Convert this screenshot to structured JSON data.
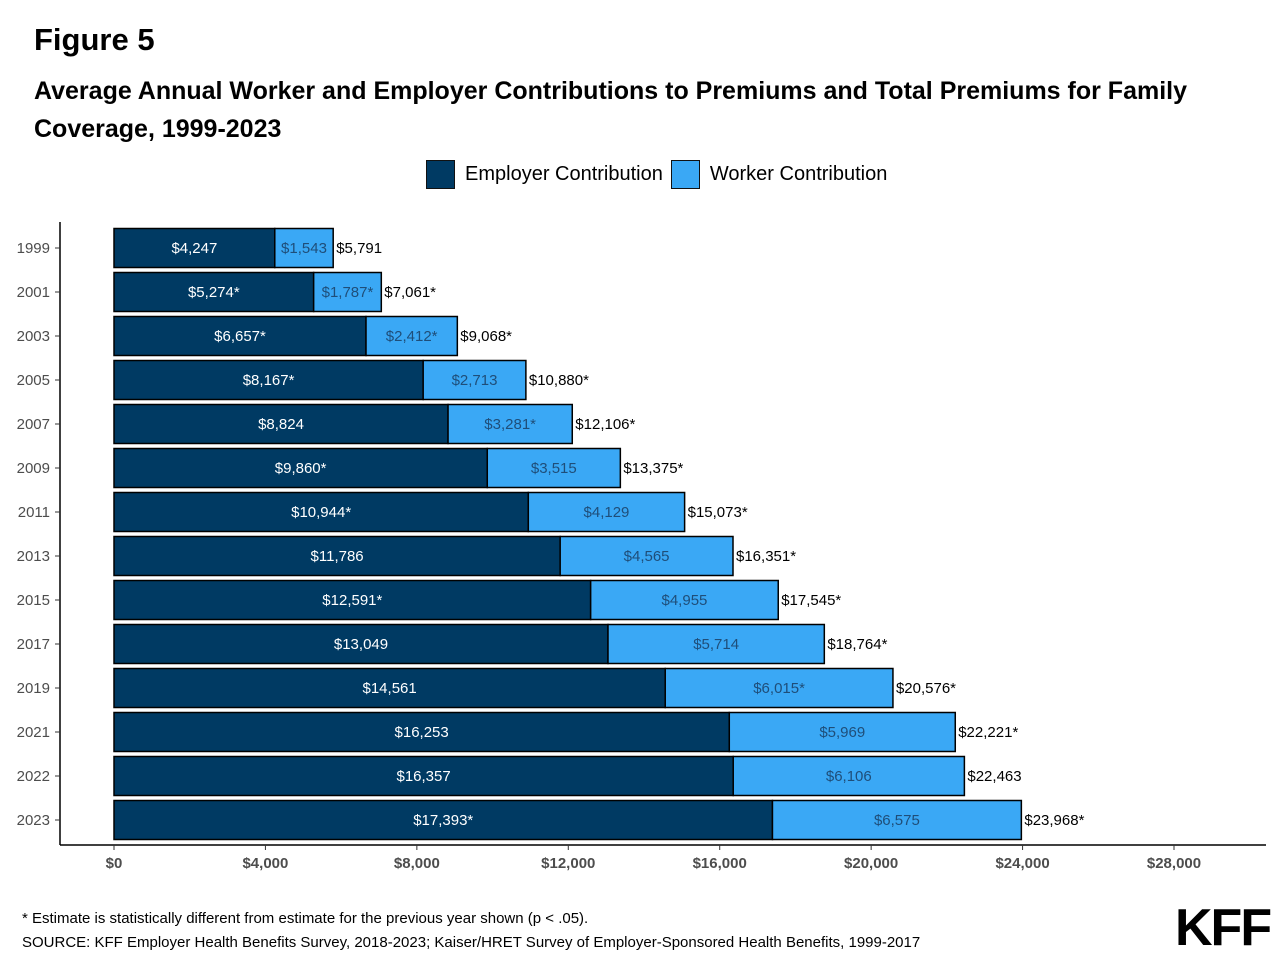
{
  "figure_label": "Figure 5",
  "footnote": "* Estimate is statistically different from estimate for the previous year shown (p < .05).",
  "source": "SOURCE: KFF Employer Health Benefits Survey, 2018-2023; Kaiser/HRET Survey of Employer-Sponsored Health Benefits, 1999-2017",
  "logo_text": "KFF",
  "colors": {
    "employer": "#003a63",
    "worker": "#3aa8f5",
    "axis": "#000000",
    "bar_border": "#000000"
  },
  "chart_data": {
    "type": "bar",
    "orientation": "horizontal",
    "stacked": true,
    "title": "Average Annual Worker and Employer Contributions to Premiums and Total Premiums for Family Coverage, 1999-2023",
    "xlabel": "",
    "ylabel": "",
    "xlim": [
      0,
      30000
    ],
    "x_ticks": [
      0,
      4000,
      8000,
      12000,
      16000,
      20000,
      24000,
      28000
    ],
    "x_tick_labels": [
      "$0",
      "$4,000",
      "$8,000",
      "$12,000",
      "$16,000",
      "$20,000",
      "$24,000",
      "$28,000"
    ],
    "grid": false,
    "legend_position": "top",
    "categories": [
      "1999",
      "2001",
      "2003",
      "2005",
      "2007",
      "2009",
      "2011",
      "2013",
      "2015",
      "2017",
      "2019",
      "2021",
      "2022",
      "2023"
    ],
    "series": [
      {
        "name": "Employer Contribution",
        "values": [
          4247,
          5274,
          6657,
          8167,
          8824,
          9860,
          10944,
          11786,
          12591,
          13049,
          14561,
          16253,
          16357,
          17393
        ],
        "labels": [
          "$4,247",
          "$5,274*",
          "$6,657*",
          "$8,167*",
          "$8,824",
          "$9,860*",
          "$10,944*",
          "$11,786",
          "$12,591*",
          "$13,049",
          "$14,561",
          "$16,253",
          "$16,357",
          "$17,393*"
        ]
      },
      {
        "name": "Worker Contribution",
        "values": [
          1543,
          1787,
          2412,
          2713,
          3281,
          3515,
          4129,
          4565,
          4955,
          5714,
          6015,
          5969,
          6106,
          6575
        ],
        "labels": [
          "$1,543",
          "$1,787*",
          "$2,412*",
          "$2,713",
          "$3,281*",
          "$3,515",
          "$4,129",
          "$4,565",
          "$4,955",
          "$5,714",
          "$6,015*",
          "$5,969",
          "$6,106",
          "$6,575"
        ]
      }
    ],
    "totals": [
      5791,
      7061,
      9068,
      10880,
      12106,
      13375,
      15073,
      16351,
      17545,
      18764,
      20576,
      22221,
      22463,
      23968
    ],
    "total_labels": [
      "$5,791",
      "$7,061*",
      "$9,068*",
      "$10,880*",
      "$12,106*",
      "$13,375*",
      "$15,073*",
      "$16,351*",
      "$17,545*",
      "$18,764*",
      "$20,576*",
      "$22,221*",
      "$22,463",
      "$23,968*"
    ]
  }
}
